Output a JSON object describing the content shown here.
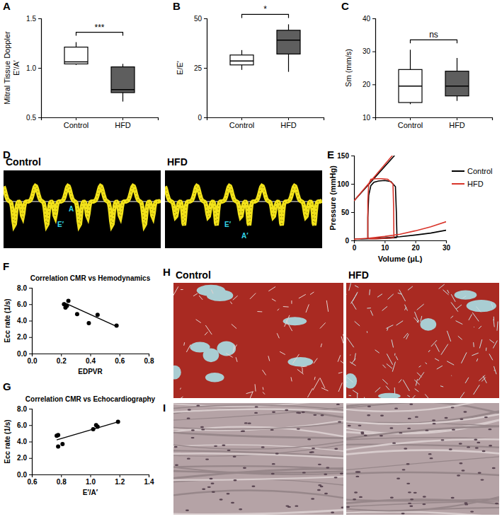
{
  "chart_data": [
    {
      "type": "box",
      "panel": "A",
      "ylabel": [
        "Mitral Tissue Doppler",
        "E′/A′"
      ],
      "categories": [
        "Control",
        "HFD"
      ],
      "colors": [
        "#ffffff",
        "#5e5e5e"
      ],
      "min": [
        1.03,
        0.66
      ],
      "q1": [
        1.04,
        0.75
      ],
      "median": [
        1.06,
        0.78
      ],
      "q3": [
        1.21,
        1.01
      ],
      "max": [
        1.26,
        1.04
      ],
      "ylim": [
        0.5,
        1.5
      ],
      "yticks": [
        0.5,
        {
          "value": 1,
          "label": "1.0"
        },
        1.5
      ],
      "annotation": "***"
    },
    {
      "type": "box",
      "panel": "B",
      "ylabel": [
        "E/E′"
      ],
      "categories": [
        "Control",
        "HFD"
      ],
      "colors": [
        "#ffffff",
        "#5e5e5e"
      ],
      "min": [
        24,
        23
      ],
      "q1": [
        26.5,
        32
      ],
      "median": [
        28.5,
        39
      ],
      "q3": [
        31.5,
        44
      ],
      "max": [
        34,
        47
      ],
      "ylim": [
        0,
        50
      ],
      "yticks": [
        0,
        25,
        50
      ],
      "annotation": "*"
    },
    {
      "type": "box",
      "panel": "C",
      "ylabel": [
        "Sm (mm/s)"
      ],
      "categories": [
        "Control",
        "HFD"
      ],
      "colors": [
        "#ffffff",
        "#5e5e5e"
      ],
      "min": [
        14,
        15
      ],
      "q1": [
        14.5,
        16.5
      ],
      "median": [
        19.5,
        19.5
      ],
      "q3": [
        24.5,
        24
      ],
      "max": [
        30.5,
        28
      ],
      "ylim": [
        10,
        40
      ],
      "yticks": [
        10,
        20,
        30,
        40
      ],
      "annotation": "ns"
    },
    {
      "type": "image",
      "panel": "D",
      "titles": [
        "Control",
        "HFD"
      ],
      "annotations": [
        [
          "A",
          "E′"
        ],
        [
          "E′",
          "A′"
        ]
      ]
    },
    {
      "type": "line",
      "panel": "E",
      "xlabel": "Volume (μL)",
      "ylabel": "Pressure (mmHg)",
      "legend": "right",
      "series": [
        {
          "name": "Control",
          "color": "#000000",
          "x": [
            14,
            13.8,
            13.5,
            12,
            10,
            8,
            6.5,
            5.5,
            4.8,
            4.5,
            4.5,
            5,
            7,
            10,
            12,
            14,
            null,
            0,
            13.2,
            null,
            0,
            5,
            10,
            15,
            20,
            25,
            30
          ],
          "values": [
            5,
            50,
            95,
            104,
            106,
            105,
            103,
            97,
            80,
            40,
            5,
            3,
            3,
            3.5,
            4,
            5,
            null,
            70,
            150,
            null,
            2,
            3,
            4.5,
            6.5,
            9.5,
            13,
            18
          ]
        },
        {
          "name": "HFD",
          "color": "#d9352b",
          "x": [
            13,
            12.9,
            12.7,
            11,
            9,
            7,
            5.5,
            4.8,
            4.5,
            4.5,
            5,
            7,
            9,
            11,
            13,
            null,
            0,
            12.5,
            null,
            0,
            5,
            10,
            15,
            20,
            25,
            30
          ],
          "values": [
            5,
            60,
            100,
            108,
            109,
            109,
            108,
            100,
            70,
            5,
            3,
            3,
            3.5,
            4,
            5,
            null,
            70,
            150,
            null,
            2,
            4,
            7,
            11,
            17,
            24,
            33
          ]
        }
      ],
      "xlim": [
        0,
        30
      ],
      "xticks": [
        0,
        10,
        20,
        30
      ],
      "ylim": [
        0,
        150
      ],
      "yticks": [
        0,
        50,
        100,
        150
      ]
    },
    {
      "type": "scatter",
      "panel": "F",
      "title": "Correlation CMR vs Hemodynamics",
      "xlabel": "EDPVR",
      "ylabel": "Ecc rate (1/s)",
      "color": "#000000",
      "x": [
        0.22,
        0.23,
        0.24,
        0.25,
        0.31,
        0.39,
        0.45,
        0.58
      ],
      "values": [
        6.0,
        5.6,
        5.8,
        6.4,
        4.8,
        3.7,
        4.7,
        3.4
      ],
      "fit": {
        "x": [
          0.22,
          0.58
        ],
        "y": [
          6.2,
          3.3
        ]
      },
      "xlim": [
        0,
        0.8
      ],
      "xticks": [
        {
          "value": 0,
          "label": "0.0"
        },
        0.2,
        0.4,
        0.6,
        0.8
      ],
      "ylim": [
        0,
        8
      ],
      "yticks": [
        {
          "value": 0,
          "label": "0.0"
        },
        {
          "value": 2,
          "label": "2.0"
        },
        {
          "value": 4,
          "label": "4.0"
        },
        {
          "value": 6,
          "label": "6.0"
        },
        {
          "value": 8,
          "label": "8.0"
        }
      ]
    },
    {
      "type": "scatter",
      "panel": "G",
      "title": "Correlation CMR vs Echocardiography",
      "xlabel": "E′/A′",
      "ylabel": "Ecc rate (1/s)",
      "color": "#000000",
      "x": [
        0.77,
        0.78,
        0.78,
        0.81,
        1.02,
        1.04,
        1.05,
        1.19
      ],
      "values": [
        4.7,
        4.8,
        3.4,
        3.7,
        5.5,
        6.0,
        5.8,
        6.4
      ],
      "fit": {
        "x": [
          0.77,
          1.19
        ],
        "y": [
          4.2,
          6.4
        ]
      },
      "xlim": [
        0.6,
        1.4
      ],
      "xticks": [
        0.6,
        0.8,
        {
          "value": 1,
          "label": "1.0"
        },
        1.2,
        1.4
      ],
      "ylim": [
        0,
        8
      ],
      "yticks": [
        {
          "value": 0,
          "label": "0.0"
        },
        {
          "value": 2,
          "label": "2.0"
        },
        {
          "value": 4,
          "label": "4.0"
        },
        {
          "value": 6,
          "label": "6.0"
        },
        {
          "value": 8,
          "label": "8.0"
        }
      ]
    },
    {
      "type": "image",
      "panel": "H",
      "titles": [
        "Control",
        "HFD"
      ]
    },
    {
      "type": "image",
      "panel": "I"
    }
  ]
}
